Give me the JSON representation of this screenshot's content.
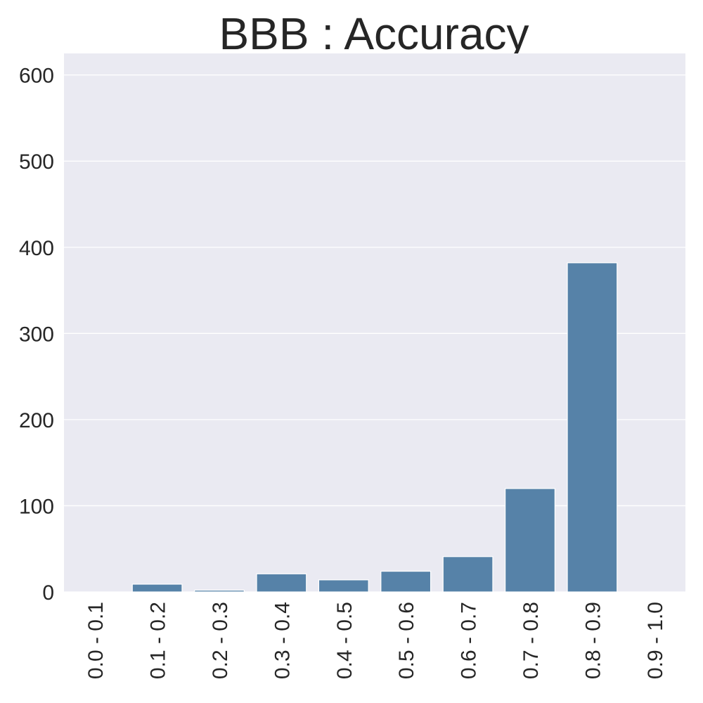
{
  "chart_data": {
    "type": "bar",
    "title": "BBB : Accuracy",
    "xlabel": "",
    "ylabel": "",
    "categories": [
      "0.0 - 0.1",
      "0.1 - 0.2",
      "0.2 - 0.3",
      "0.3 - 0.4",
      "0.4 - 0.5",
      "0.5 - 0.6",
      "0.6 - 0.7",
      "0.7 - 0.8",
      "0.8 - 0.9",
      "0.9 - 1.0"
    ],
    "values": [
      0,
      9,
      2,
      21,
      14,
      24,
      41,
      120,
      382,
      0
    ],
    "ylim": [
      0,
      625
    ],
    "yticks": [
      0,
      100,
      200,
      300,
      400,
      500,
      600
    ],
    "grid": true,
    "bar_color": "#5682a8",
    "background_color": "#eaeaf2"
  }
}
